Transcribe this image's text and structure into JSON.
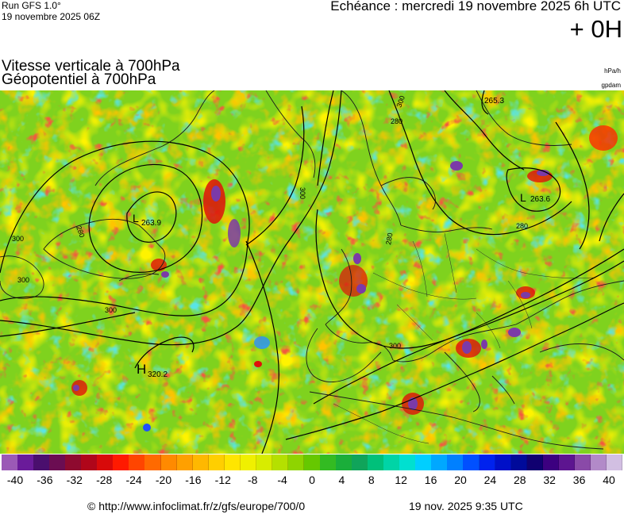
{
  "header": {
    "run_label": "Run GFS 1.0°",
    "run_date": "19 novembre 2025 06Z",
    "echeance": "Echéance : mercredi 19 novembre 2025 6h UTC",
    "offset": "+ 0H"
  },
  "titles": {
    "line1": "Vitesse verticale à 700hPa",
    "line2": "Géopotentiel à 700hPa",
    "unit1": "hPa/h",
    "unit2": "gpdam"
  },
  "map": {
    "contour_labels": [
      "300",
      "300",
      "300",
      "280",
      "300",
      "280",
      "280",
      "300",
      "300",
      "280"
    ],
    "pressure_centers": [
      {
        "type": "L",
        "value": "263.9"
      },
      {
        "type": "H",
        "value": "320.2"
      },
      {
        "type": "L",
        "value": "263.6"
      },
      {
        "type": "",
        "value": "265.3"
      }
    ]
  },
  "colorbar": {
    "colors": [
      "#9b59b6",
      "#6a1b9a",
      "#4a0f6e",
      "#6b0d52",
      "#8e0a2f",
      "#b0061a",
      "#d80a0a",
      "#ff1a00",
      "#ff4500",
      "#ff6a00",
      "#ff8a00",
      "#ffa000",
      "#ffb800",
      "#ffcf00",
      "#ffe500",
      "#f0f000",
      "#d8ec00",
      "#b5e000",
      "#8fd400",
      "#66c800",
      "#33bb22",
      "#1aae3a",
      "#10a45a",
      "#00c07a",
      "#00d4a6",
      "#00e0d0",
      "#00cfff",
      "#00a8ff",
      "#0080ff",
      "#0050ff",
      "#0022ee",
      "#0010c8",
      "#000a9a",
      "#100070",
      "#3c0080",
      "#5d1590",
      "#8a4aa8",
      "#b28ac8",
      "#d2bfe2"
    ],
    "labels": [
      "-40",
      "-36",
      "-32",
      "-28",
      "-24",
      "-20",
      "-16",
      "-12",
      "-8",
      "-4",
      "0",
      "4",
      "8",
      "12",
      "16",
      "20",
      "24",
      "28",
      "32",
      "36",
      "40"
    ]
  },
  "footer": {
    "url": "© http://www.infoclimat.fr/z/gfs/europe/700/0",
    "date": "19 nov. 2025  9:35 UTC"
  }
}
